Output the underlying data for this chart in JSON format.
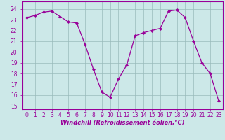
{
  "x": [
    0,
    1,
    2,
    3,
    4,
    5,
    6,
    7,
    8,
    9,
    10,
    11,
    12,
    13,
    14,
    15,
    16,
    17,
    18,
    19,
    20,
    21,
    22,
    23
  ],
  "y": [
    23.2,
    23.4,
    23.7,
    23.8,
    23.3,
    22.8,
    22.7,
    20.7,
    18.4,
    16.3,
    15.8,
    17.5,
    18.8,
    21.5,
    21.8,
    22.0,
    22.2,
    23.8,
    23.9,
    23.2,
    21.0,
    19.0,
    18.0,
    15.5
  ],
  "line_color": "#990099",
  "marker_color": "#990099",
  "bg_color": "#cce8e8",
  "grid_color": "#99bbbb",
  "xlabel": "Windchill (Refroidissement éolien,°C)",
  "ylim_min": 14.7,
  "ylim_max": 24.7,
  "yticks": [
    15,
    16,
    17,
    18,
    19,
    20,
    21,
    22,
    23,
    24
  ],
  "xticks": [
    0,
    1,
    2,
    3,
    4,
    5,
    6,
    7,
    8,
    9,
    10,
    11,
    12,
    13,
    14,
    15,
    16,
    17,
    18,
    19,
    20,
    21,
    22,
    23
  ],
  "font_color": "#990099",
  "tick_fontsize": 5.5,
  "xlabel_fontsize": 6.0
}
